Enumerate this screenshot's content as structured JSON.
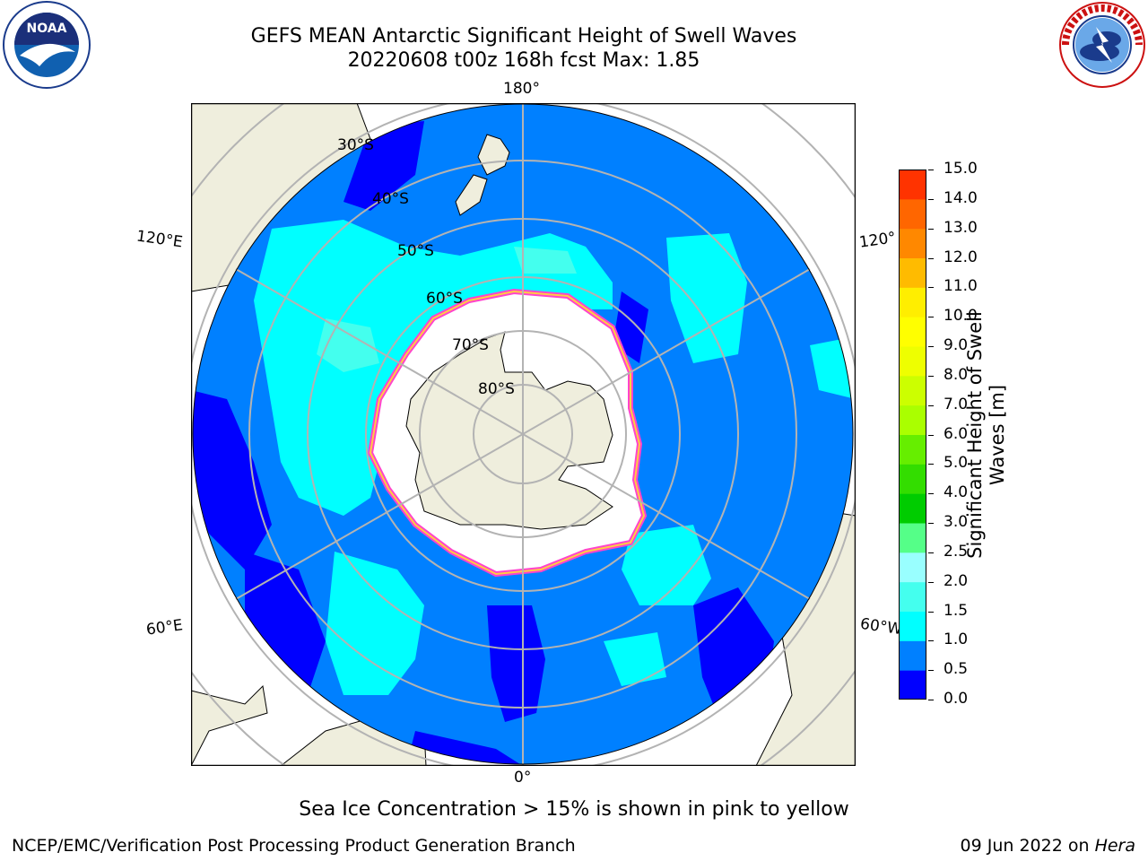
{
  "header": {
    "title_line1": "GEFS MEAN Antarctic Significant Height of Swell Waves",
    "title_line2": "20220608 t00z 168h fcst   Max: 1.85"
  },
  "logos": {
    "noaa_text": "NOAA",
    "noaa_ring_text": "NATIONAL OCEANIC AND ATMOSPHERIC ADMINISTRATION · U.S. DEPARTMENT OF COMMERCE",
    "nws_ring_text": "NATIONAL WEATHER SERVICE"
  },
  "map": {
    "projection": "south polar stereographic",
    "longitude_labels": {
      "top": "180°",
      "bottom": "0°",
      "upper_left": "120°E",
      "lower_left": "60°E",
      "upper_right": "120°",
      "lower_right": "60°W"
    },
    "latitude_labels": [
      "30°S",
      "40°S",
      "50°S",
      "60°S",
      "70°S",
      "80°S"
    ],
    "colors": {
      "land": "#efeedd",
      "ice_shelf": "#ffffff",
      "grid": "#b3b3b3",
      "ice_edge_pink": "#ff44cc",
      "ice_edge_yellow": "#ffcc44"
    }
  },
  "colorbar": {
    "label": "Significant Height of Swell Waves [m]",
    "label_line1": "Significant Height of Swell",
    "label_line2": "Waves [m]",
    "ticks": [
      "0.0",
      "0.5",
      "1.0",
      "1.5",
      "2.0",
      "2.5",
      "3.0",
      "4.0",
      "5.0",
      "6.0",
      "7.0",
      "8.0",
      "9.0",
      "10.0",
      "11.0",
      "12.0",
      "13.0",
      "14.0",
      "15.0"
    ],
    "colors": [
      "#0000ff",
      "#0080ff",
      "#00ffff",
      "#44ffee",
      "#99ffff",
      "#55ff88",
      "#00cc00",
      "#33dd00",
      "#66ee00",
      "#aaff00",
      "#ccff00",
      "#eeff00",
      "#ffff00",
      "#ffee00",
      "#ffbb00",
      "#ff8800",
      "#ff6600",
      "#ff3300",
      "#ff0000"
    ]
  },
  "swell_field": {
    "colors": {
      "0.0-0.5": "#0000ff",
      "0.5-1.0": "#0080ff",
      "1.0-1.5": "#00ffff",
      "1.5-2.0": "#44ffee"
    }
  },
  "footer": {
    "note": "Sea Ice Concentration > 15% is shown in pink to yellow",
    "credit": "NCEP/EMC/Verification Post Processing Product Generation Branch",
    "date": "09 Jun 2022 on ",
    "machine": "Hera"
  }
}
